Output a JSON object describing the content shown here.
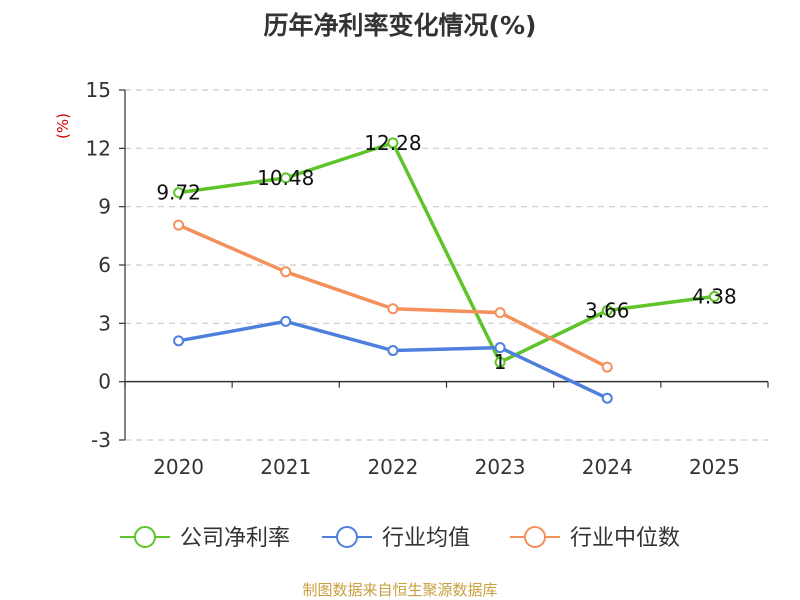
{
  "chart_data": {
    "type": "line",
    "title": "历年净利率变化情况(%)",
    "ylabel": "(%)",
    "xlabel": "",
    "categories": [
      "2020",
      "2021",
      "2022",
      "2023",
      "2024",
      "2025"
    ],
    "ylim": [
      -3,
      15
    ],
    "yticks": [
      -3,
      0,
      3,
      6,
      9,
      12,
      15
    ],
    "grid": true,
    "legend_position": "bottom",
    "series": [
      {
        "name": "公司净利率",
        "color": "#5ec42a",
        "values": [
          9.72,
          10.48,
          12.28,
          1,
          3.66,
          4.38
        ],
        "labels": [
          "9.72",
          "10.48",
          "12.28",
          "1",
          "3.66",
          "4.38"
        ]
      },
      {
        "name": "行业均值",
        "color": "#4e7fdc",
        "values": [
          2.1,
          3.1,
          1.6,
          1.75,
          -0.85,
          null
        ]
      },
      {
        "name": "行业中位数",
        "color": "#f4905b",
        "values": [
          8.05,
          5.65,
          3.75,
          3.55,
          0.75,
          null
        ]
      }
    ]
  },
  "source": "制图数据来自恒生聚源数据库"
}
